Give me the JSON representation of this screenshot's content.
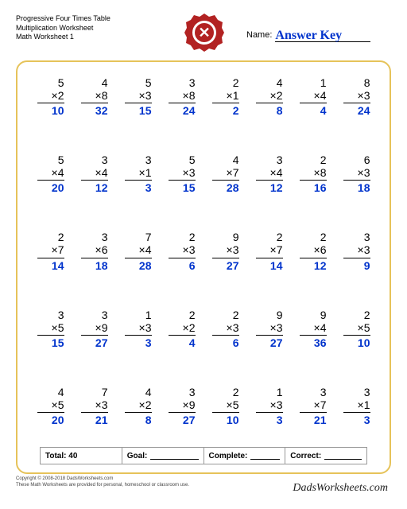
{
  "header": {
    "title1": "Progressive Four Times Table",
    "title2": "Multiplication Worksheet",
    "title3": "Math Worksheet 1",
    "name_label": "Name:",
    "answer_key": "Answer Key"
  },
  "badge": {
    "bg": "#b22222",
    "ring": "#ffffff",
    "symbol": "✕",
    "symbol_color": "#ffffff"
  },
  "frame_border": "#e6c35a",
  "answer_color": "#0033cc",
  "problems": [
    [
      {
        "a": 5,
        "b": 2,
        "r": 10
      },
      {
        "a": 4,
        "b": 8,
        "r": 32
      },
      {
        "a": 5,
        "b": 3,
        "r": 15
      },
      {
        "a": 3,
        "b": 8,
        "r": 24
      },
      {
        "a": 2,
        "b": 1,
        "r": 2
      },
      {
        "a": 4,
        "b": 2,
        "r": 8
      },
      {
        "a": 1,
        "b": 4,
        "r": 4
      },
      {
        "a": 8,
        "b": 3,
        "r": 24
      }
    ],
    [
      {
        "a": 5,
        "b": 4,
        "r": 20
      },
      {
        "a": 3,
        "b": 4,
        "r": 12
      },
      {
        "a": 3,
        "b": 1,
        "r": 3
      },
      {
        "a": 5,
        "b": 3,
        "r": 15
      },
      {
        "a": 4,
        "b": 7,
        "r": 28
      },
      {
        "a": 3,
        "b": 4,
        "r": 12
      },
      {
        "a": 2,
        "b": 8,
        "r": 16
      },
      {
        "a": 6,
        "b": 3,
        "r": 18
      }
    ],
    [
      {
        "a": 2,
        "b": 7,
        "r": 14
      },
      {
        "a": 3,
        "b": 6,
        "r": 18
      },
      {
        "a": 7,
        "b": 4,
        "r": 28
      },
      {
        "a": 2,
        "b": 3,
        "r": 6
      },
      {
        "a": 9,
        "b": 3,
        "r": 27
      },
      {
        "a": 2,
        "b": 7,
        "r": 14
      },
      {
        "a": 2,
        "b": 6,
        "r": 12
      },
      {
        "a": 3,
        "b": 3,
        "r": 9
      }
    ],
    [
      {
        "a": 3,
        "b": 5,
        "r": 15
      },
      {
        "a": 3,
        "b": 9,
        "r": 27
      },
      {
        "a": 1,
        "b": 3,
        "r": 3
      },
      {
        "a": 2,
        "b": 2,
        "r": 4
      },
      {
        "a": 2,
        "b": 3,
        "r": 6
      },
      {
        "a": 9,
        "b": 3,
        "r": 27
      },
      {
        "a": 9,
        "b": 4,
        "r": 36
      },
      {
        "a": 2,
        "b": 5,
        "r": 10
      }
    ],
    [
      {
        "a": 4,
        "b": 5,
        "r": 20
      },
      {
        "a": 7,
        "b": 3,
        "r": 21
      },
      {
        "a": 4,
        "b": 2,
        "r": 8
      },
      {
        "a": 3,
        "b": 9,
        "r": 27
      },
      {
        "a": 2,
        "b": 5,
        "r": 10
      },
      {
        "a": 1,
        "b": 3,
        "r": 3
      },
      {
        "a": 3,
        "b": 7,
        "r": 21
      },
      {
        "a": 3,
        "b": 1,
        "r": 3
      }
    ]
  ],
  "footer": {
    "total_label": "Total:",
    "total_value": "40",
    "goal_label": "Goal:",
    "complete_label": "Complete:",
    "correct_label": "Correct:"
  },
  "copyright": {
    "line1": "Copyright © 2008-2018 DadsWorksheets.com",
    "line2": "These Math Worksheets are provided for personal, homeschool or classroom use."
  },
  "signature": "DadsWorksheets.com"
}
